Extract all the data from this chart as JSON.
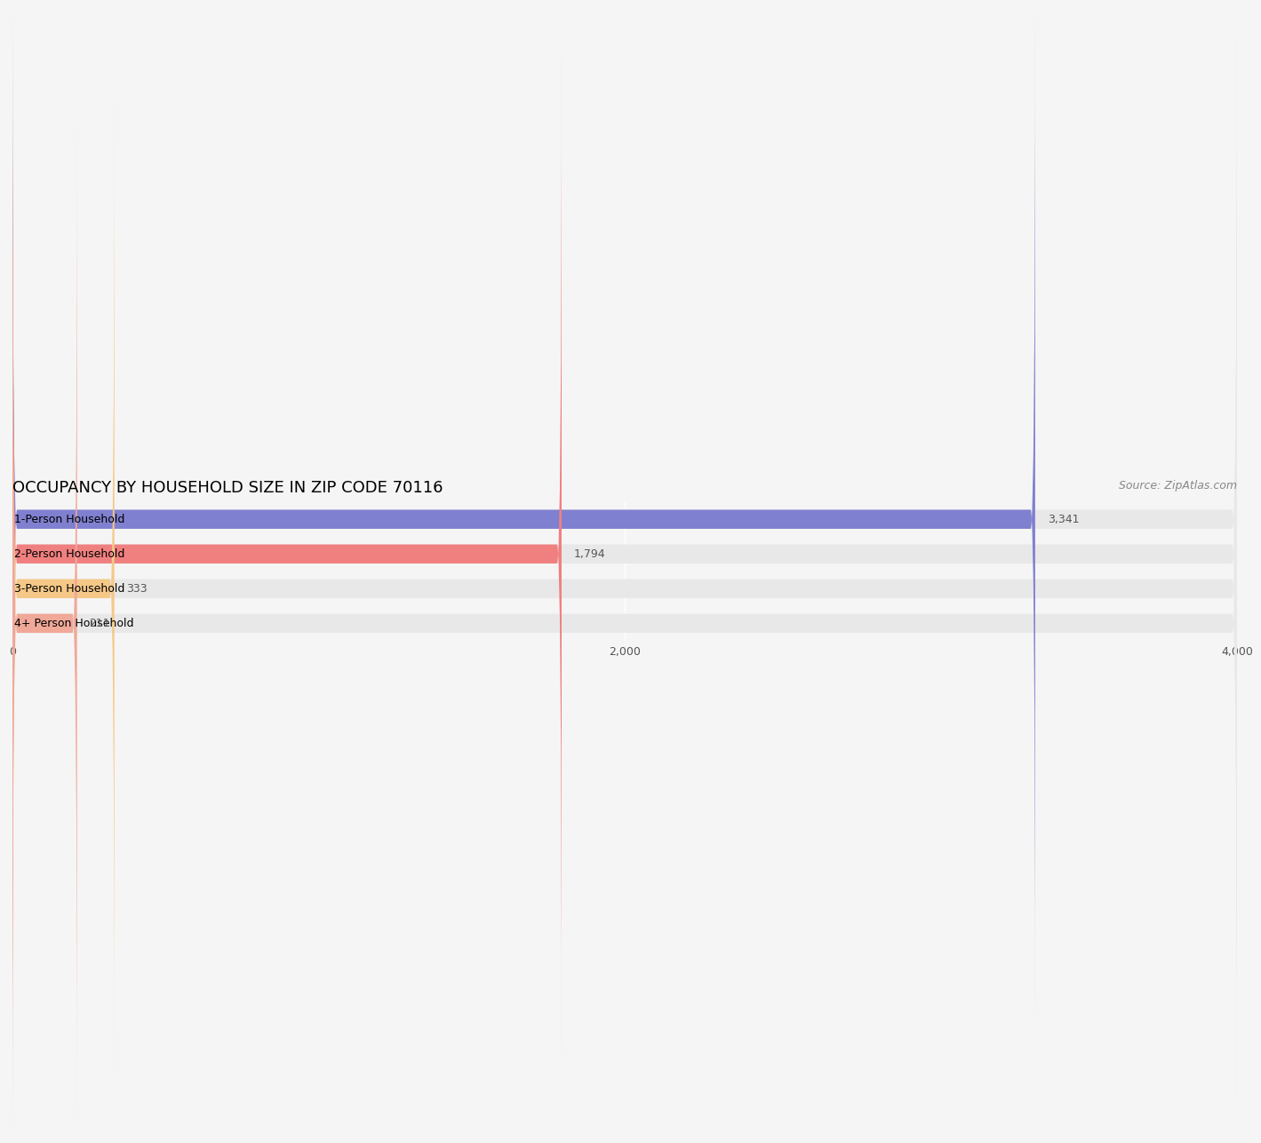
{
  "title": "OCCUPANCY BY HOUSEHOLD SIZE IN ZIP CODE 70116",
  "source": "Source: ZipAtlas.com",
  "categories": [
    "1-Person Household",
    "2-Person Household",
    "3-Person Household",
    "4+ Person Household"
  ],
  "values": [
    3341,
    1794,
    333,
    211
  ],
  "bar_colors": [
    "#8080d0",
    "#f08080",
    "#f5c887",
    "#f0a898"
  ],
  "xlim": [
    0,
    4000
  ],
  "xticks": [
    0,
    2000,
    4000
  ],
  "background_color": "#f5f5f5",
  "bar_background_color": "#e8e8e8",
  "title_fontsize": 13,
  "source_fontsize": 9,
  "label_fontsize": 9,
  "value_fontsize": 9,
  "bar_height": 0.55
}
